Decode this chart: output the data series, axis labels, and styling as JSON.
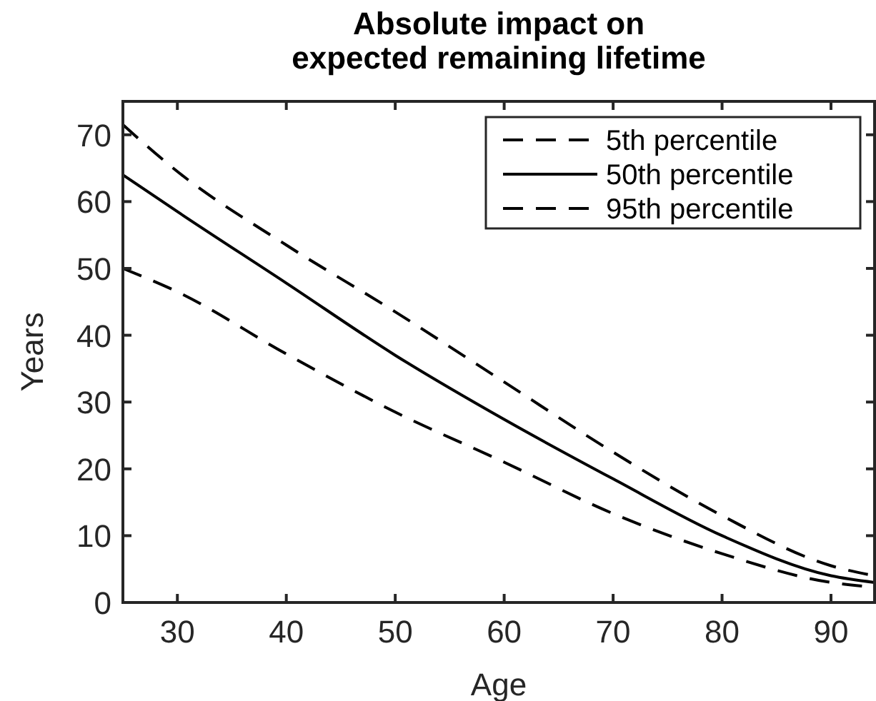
{
  "chart_data": {
    "type": "line",
    "title": "Absolute impact on\nexpected remaining lifetime",
    "xlabel": "Age",
    "ylabel": "Years",
    "x": [
      25,
      30,
      40,
      50,
      60,
      70,
      80,
      90,
      94
    ],
    "series": [
      {
        "name": "5th percentile",
        "color": "#000000",
        "line_style": "dashed",
        "values": [
          71.5,
          64.5,
          53.5,
          43.5,
          33,
          22.5,
          13,
          5.5,
          4
        ]
      },
      {
        "name": "50th percentile",
        "color": "#000000",
        "line_style": "solid",
        "values": [
          64,
          58.5,
          47.8,
          37,
          27.4,
          18.5,
          10,
          4,
          3
        ]
      },
      {
        "name": "95th percentile",
        "color": "#000000",
        "line_style": "dashed",
        "values": [
          50,
          46.5,
          37.2,
          28.5,
          21,
          13.3,
          7.3,
          3,
          2.3
        ]
      }
    ],
    "xlim": [
      25,
      94
    ],
    "ylim": [
      0,
      75
    ],
    "xticks": [
      30,
      40,
      50,
      60,
      70,
      80,
      90
    ],
    "yticks": [
      0,
      10,
      20,
      30,
      40,
      50,
      60,
      70
    ],
    "grid": false,
    "legend": "top right"
  }
}
